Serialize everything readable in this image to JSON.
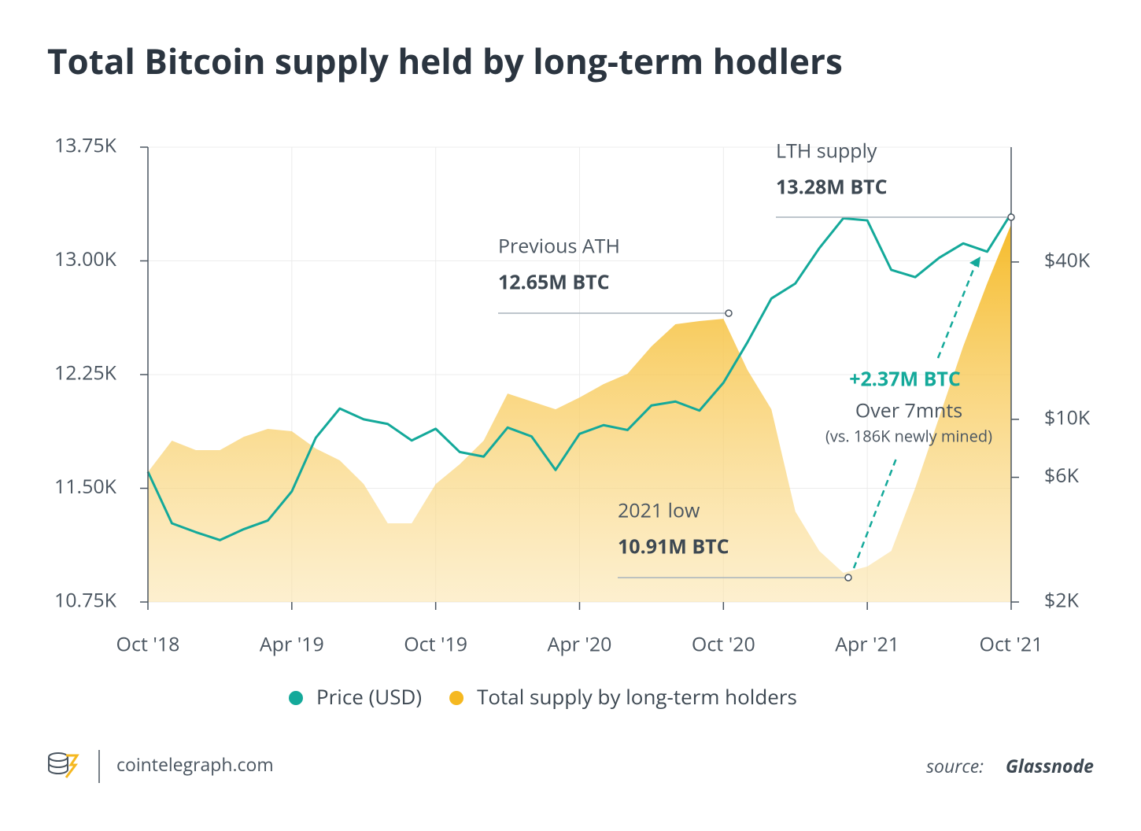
{
  "chart_data": {
    "type": "area-line",
    "title": "Total Bitcoin supply held by long-term hodlers",
    "x": [
      "2018-10",
      "2018-11",
      "2018-12",
      "2019-01",
      "2019-02",
      "2019-03",
      "2019-04",
      "2019-05",
      "2019-06",
      "2019-07",
      "2019-08",
      "2019-09",
      "2019-10",
      "2019-11",
      "2019-12",
      "2020-01",
      "2020-02",
      "2020-03",
      "2020-04",
      "2020-05",
      "2020-06",
      "2020-07",
      "2020-08",
      "2020-09",
      "2020-10",
      "2020-11",
      "2020-12",
      "2021-01",
      "2021-02",
      "2021-03",
      "2021-04",
      "2021-05",
      "2021-06",
      "2021-07",
      "2021-08",
      "2021-09",
      "2021-10"
    ],
    "xlim": [
      "2018-10",
      "2021-10"
    ],
    "xticks": [
      {
        "value": "2018-10",
        "label": "Oct '18"
      },
      {
        "value": "2019-04",
        "label": "Apr '19"
      },
      {
        "value": "2019-10",
        "label": "Oct '19"
      },
      {
        "value": "2020-04",
        "label": "Apr '20"
      },
      {
        "value": "2020-10",
        "label": "Oct '20"
      },
      {
        "value": "2021-04",
        "label": "Apr '21"
      },
      {
        "value": "2021-10",
        "label": "Oct '21"
      }
    ],
    "ylim": [
      10750,
      13750
    ],
    "yticks": [
      {
        "value": 10750,
        "label": "10.75K"
      },
      {
        "value": 11500,
        "label": "11.50K"
      },
      {
        "value": 12250,
        "label": "12.25K"
      },
      {
        "value": 13000,
        "label": "13.00K"
      },
      {
        "value": 13750,
        "label": "13.75K"
      }
    ],
    "y2lim": [
      2000,
      110000
    ],
    "y2ticks": [
      {
        "value": 2000,
        "label": "$2K"
      },
      {
        "value": 6000,
        "label": "$6K"
      },
      {
        "value": 10000,
        "label": "$10K"
      },
      {
        "value": 40000,
        "label": "$40K"
      }
    ],
    "y2_log": true,
    "grid": true,
    "series": [
      {
        "name": "Price (USD)",
        "color": "#14a99a",
        "axis": "y2",
        "kind": "line",
        "values": [
          6300,
          4000,
          3700,
          3450,
          3800,
          4100,
          5300,
          8500,
          11000,
          10000,
          9600,
          8300,
          9200,
          7500,
          7200,
          9300,
          8600,
          6400,
          8800,
          9500,
          9100,
          11300,
          11700,
          10800,
          13800,
          19700,
          29000,
          33100,
          45200,
          58800,
          57700,
          37300,
          35000,
          41500,
          47100,
          43800,
          61300
        ]
      },
      {
        "name": "Total supply by long-term holders",
        "color": "#f5b820",
        "axis": "y",
        "kind": "area",
        "values": [
          11607,
          11814,
          11752,
          11752,
          11840,
          11892,
          11876,
          11762,
          11684,
          11528,
          11269,
          11269,
          11528,
          11658,
          11814,
          12125,
          12073,
          12021,
          12099,
          12187,
          12255,
          12436,
          12582,
          12603,
          12618,
          12281,
          12021,
          11347,
          11087,
          10942,
          10984,
          11087,
          11502,
          11969,
          12436,
          12852,
          13241
        ]
      }
    ],
    "legend": "bottom",
    "annotations": [
      "LTH supply",
      "13.28M BTC",
      "Previous ATH",
      "12.65M BTC",
      "2021 low",
      "10.91M BTC",
      "+2.37M BTC",
      "Over 7mnts",
      "(vs. 186K newly mined)"
    ]
  },
  "footer": {
    "site": "cointelegraph.com",
    "source_label": "source:",
    "source": "Glassnode"
  }
}
